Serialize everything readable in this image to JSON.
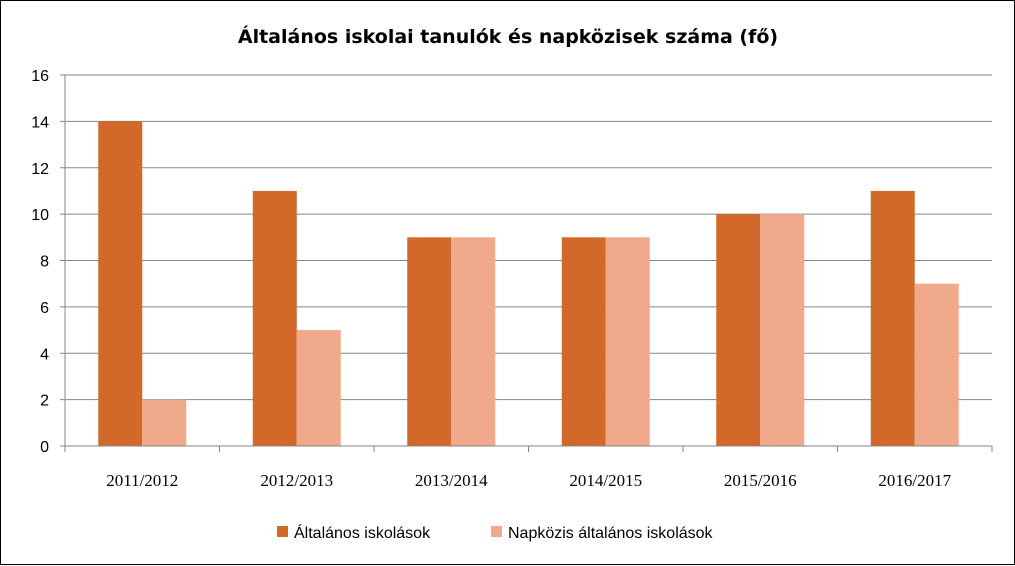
{
  "chart_data": {
    "type": "bar",
    "title": "Általános iskolai tanulók és napközisek száma (fő)",
    "xlabel": "",
    "ylabel": "",
    "categories": [
      "2011/2012",
      "2012/2013",
      "2013/2014",
      "2014/2015",
      "2015/2016",
      "2016/2017"
    ],
    "series": [
      {
        "name": "Általános iskolások",
        "values": [
          14,
          11,
          9,
          9,
          10,
          11
        ],
        "color": "#D2692A"
      },
      {
        "name": "Napközis általános iskolások",
        "values": [
          2,
          5,
          9,
          9,
          10,
          7
        ],
        "color": "#F0A98A"
      }
    ],
    "ylim": [
      0,
      16
    ],
    "yticks": [
      0,
      2,
      4,
      6,
      8,
      10,
      12,
      14,
      16
    ],
    "grid": true,
    "legend_position": "bottom"
  }
}
